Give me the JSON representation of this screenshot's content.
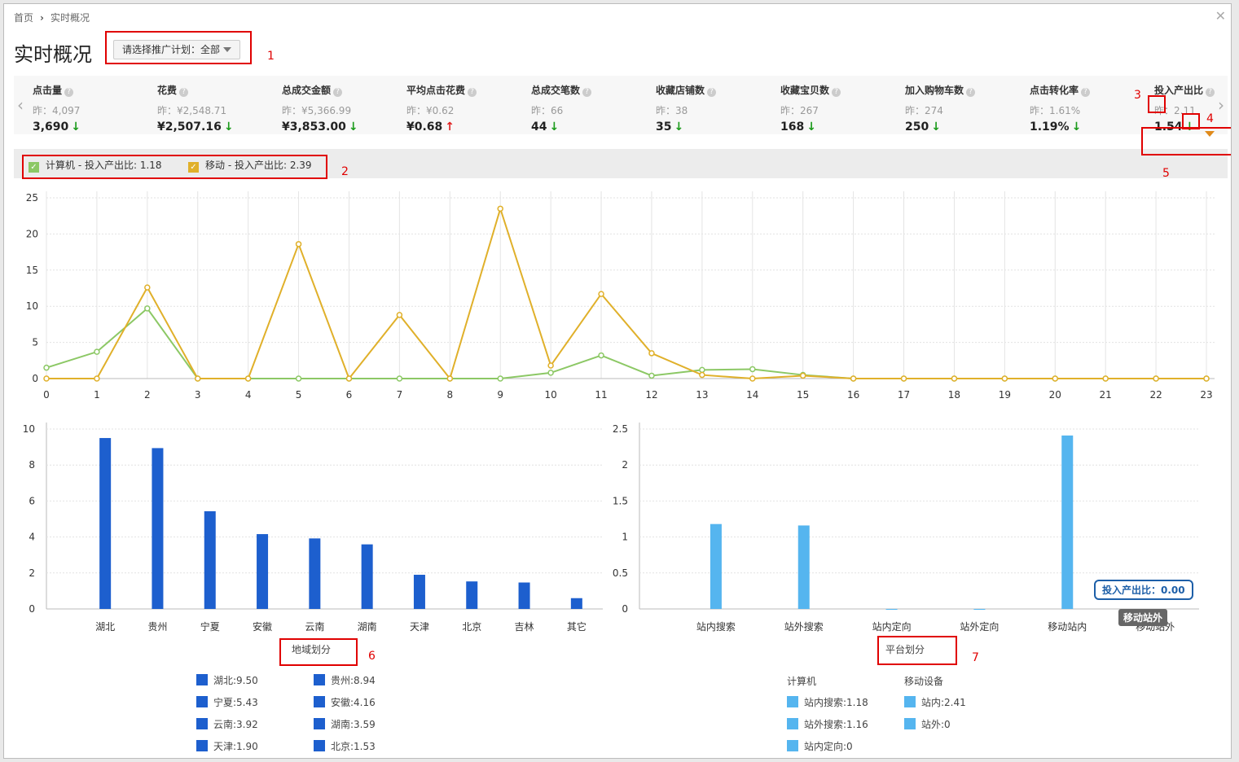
{
  "breadcrumb": {
    "home": "首页",
    "current": "实时概况"
  },
  "page_title": "实时概况",
  "plan_select": {
    "label": "请选择推广计划：",
    "value": "全部"
  },
  "metrics": [
    {
      "name": "点击量",
      "yesterday": "昨：4,097",
      "value": "3,690",
      "trend": "down"
    },
    {
      "name": "花费",
      "yesterday": "昨：¥2,548.71",
      "value": "¥2,507.16",
      "trend": "down"
    },
    {
      "name": "总成交金额",
      "yesterday": "昨：¥5,366.99",
      "value": "¥3,853.00",
      "trend": "down"
    },
    {
      "name": "平均点击花费",
      "yesterday": "昨：¥0.62",
      "value": "¥0.68",
      "trend": "up"
    },
    {
      "name": "总成交笔数",
      "yesterday": "昨：66",
      "value": "44",
      "trend": "down"
    },
    {
      "name": "收藏店铺数",
      "yesterday": "昨：38",
      "value": "35",
      "trend": "down"
    },
    {
      "name": "收藏宝贝数",
      "yesterday": "昨：267",
      "value": "168",
      "trend": "down"
    },
    {
      "name": "加入购物车数",
      "yesterday": "昨：274",
      "value": "250",
      "trend": "down"
    },
    {
      "name": "点击转化率",
      "yesterday": "昨：1.61%",
      "value": "1.19%",
      "trend": "down"
    },
    {
      "name": "投入产出比",
      "yesterday": "昨：2.11",
      "value": "1.54",
      "trend": "down"
    }
  ],
  "icons": {
    "arrow_down": "↓",
    "arrow_up": "↑",
    "prev": "‹",
    "next": "›",
    "close": "✕",
    "check": "✓",
    "help": "?"
  },
  "annotations": [
    "1",
    "2",
    "3",
    "4",
    "5",
    "6",
    "7"
  ],
  "legend": [
    {
      "label": "计算机 - 投入产出比: 1.18",
      "color": "#8cc865"
    },
    {
      "label": "移动 - 投入产出比: 2.39",
      "color": "#e0b02a"
    }
  ],
  "chart_data": [
    {
      "type": "line",
      "x": [
        0,
        1,
        2,
        3,
        4,
        5,
        6,
        7,
        8,
        9,
        10,
        11,
        12,
        13,
        14,
        15,
        16,
        17,
        18,
        19,
        20,
        21,
        22,
        23
      ],
      "ylim": [
        0,
        25
      ],
      "yticks": [
        0,
        5,
        10,
        15,
        20,
        25
      ],
      "series": [
        {
          "name": "计算机",
          "color": "#8cc865",
          "values": [
            1.5,
            3.7,
            9.7,
            0,
            0,
            0,
            0,
            0,
            0,
            0,
            0.8,
            3.2,
            0.4,
            1.2,
            1.3,
            0.5,
            0,
            0,
            0,
            0,
            0,
            0,
            0,
            0
          ]
        },
        {
          "name": "移动",
          "color": "#e0b02a",
          "values": [
            0,
            0,
            12.6,
            0,
            0,
            18.6,
            0,
            8.8,
            0,
            23.5,
            1.8,
            11.7,
            3.5,
            0.5,
            0,
            0.4,
            0,
            0,
            0,
            0,
            0,
            0,
            0,
            0
          ]
        }
      ]
    },
    {
      "type": "bar",
      "categories": [
        "湖北",
        "贵州",
        "宁夏",
        "安徽",
        "云南",
        "湖南",
        "天津",
        "北京",
        "吉林",
        "其它"
      ],
      "values": [
        9.5,
        8.94,
        5.43,
        4.16,
        3.92,
        3.59,
        1.9,
        1.53,
        1.47,
        0.6
      ],
      "ylim": [
        0,
        10
      ],
      "yticks": [
        0,
        2,
        4,
        6,
        8,
        10
      ],
      "color": "#1d5fce",
      "xlabel": "地域划分"
    },
    {
      "type": "bar",
      "categories": [
        "站内搜索",
        "站外搜索",
        "站内定向",
        "站外定向",
        "移动站内",
        "移动站外"
      ],
      "values": [
        1.18,
        1.16,
        0,
        0,
        2.41,
        0
      ],
      "ylim": [
        0,
        2.5
      ],
      "yticks": [
        0,
        0.5,
        1,
        1.5,
        2,
        2.5
      ],
      "color": "#55b5ef",
      "xlabel": "平台划分"
    }
  ],
  "tooltip": {
    "text": "投入产出比：0.00",
    "hover_label": "移动站外"
  },
  "region_legend": {
    "title": "地域划分",
    "items": [
      "湖北:9.50",
      "贵州:8.94",
      "宁夏:5.43",
      "安徽:4.16",
      "云南:3.92",
      "湖南:3.59",
      "天津:1.90",
      "北京:1.53"
    ]
  },
  "platform_legend": {
    "title": "平台划分",
    "computer_title": "计算机",
    "mobile_title": "移动设备",
    "computer_items": [
      "站内搜索:1.18",
      "站外搜索:1.16",
      "站内定向:0"
    ],
    "mobile_items": [
      "站内:2.41",
      "站外:0"
    ]
  }
}
